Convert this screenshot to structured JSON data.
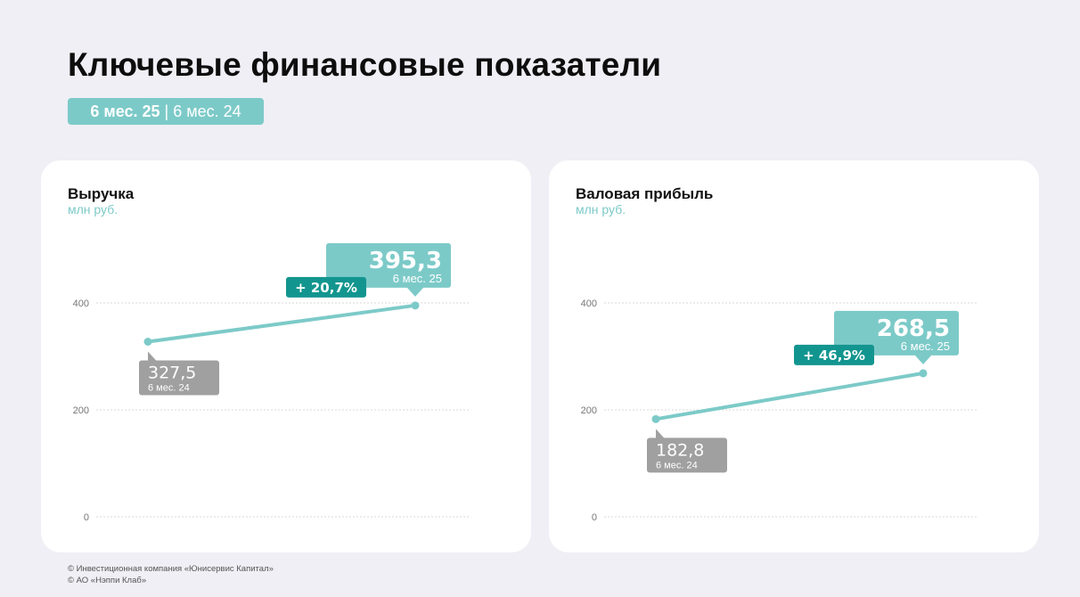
{
  "page": {
    "title": "Ключевые финансовые показатели",
    "period_current": "6 мес. 25",
    "period_separator": "|",
    "period_previous": "6 мес. 24"
  },
  "colors": {
    "background": "#efeff5",
    "accent": "#7ccac8",
    "accent_dark": "#13958f",
    "previous_label": "#a0a0a0",
    "grid": "#d8d8d8"
  },
  "chart_data": [
    {
      "type": "line",
      "title": "Выручка",
      "unit": "млн руб.",
      "x": [
        "6 мес. 24",
        "6 мес. 25"
      ],
      "values": [
        327.5,
        395.3
      ],
      "value_labels": [
        "327,5",
        "395,3"
      ],
      "period_labels": [
        "6 мес. 24",
        "6 мес. 25"
      ],
      "growth_label": "+ 20,7%",
      "ylim": [
        0,
        400
      ],
      "yticks": [
        0,
        200,
        400
      ],
      "grid": true
    },
    {
      "type": "line",
      "title": "Валовая прибыль",
      "unit": "млн руб.",
      "x": [
        "6 мес. 24",
        "6 мес. 25"
      ],
      "values": [
        182.8,
        268.5
      ],
      "value_labels": [
        "182,8",
        "268,5"
      ],
      "period_labels": [
        "6 мес. 24",
        "6 мес. 25"
      ],
      "growth_label": "+ 46,9%",
      "ylim": [
        0,
        400
      ],
      "yticks": [
        0,
        200,
        400
      ],
      "grid": true
    }
  ],
  "footer": {
    "line1": "© Инвестиционная компания «Юнисервис Капитал»",
    "line2": "© АО «Нэппи Клаб»"
  }
}
